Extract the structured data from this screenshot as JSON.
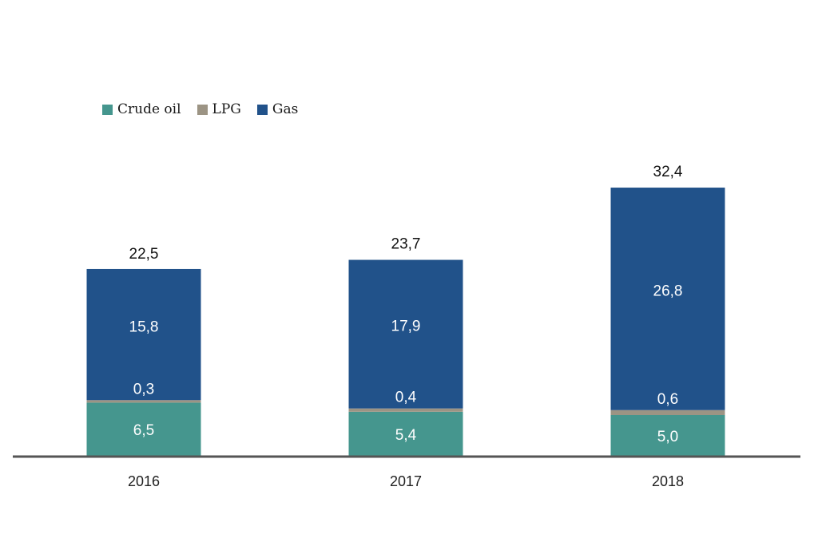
{
  "chart_data": {
    "type": "bar",
    "stacked": true,
    "categories": [
      "2016",
      "2017",
      "2018"
    ],
    "series": [
      {
        "name": "Crude oil",
        "color": "#45968e",
        "values": [
          6.5,
          5.4,
          5.0
        ],
        "labels": [
          "6,5",
          "5,4",
          "5,0"
        ]
      },
      {
        "name": "LPG",
        "color": "#9c9484",
        "values": [
          0.3,
          0.4,
          0.6
        ],
        "labels": [
          "0,3",
          "0,4",
          "0,6"
        ]
      },
      {
        "name": "Gas",
        "color": "#21528a",
        "values": [
          15.8,
          17.9,
          26.8
        ],
        "labels": [
          "15,8",
          "17,9",
          "26,8"
        ]
      }
    ],
    "totals": [
      22.5,
      23.7,
      32.4
    ],
    "total_labels": [
      "22,5",
      "23,7",
      "32,4"
    ],
    "legend_position": "top-left",
    "grid": false
  }
}
